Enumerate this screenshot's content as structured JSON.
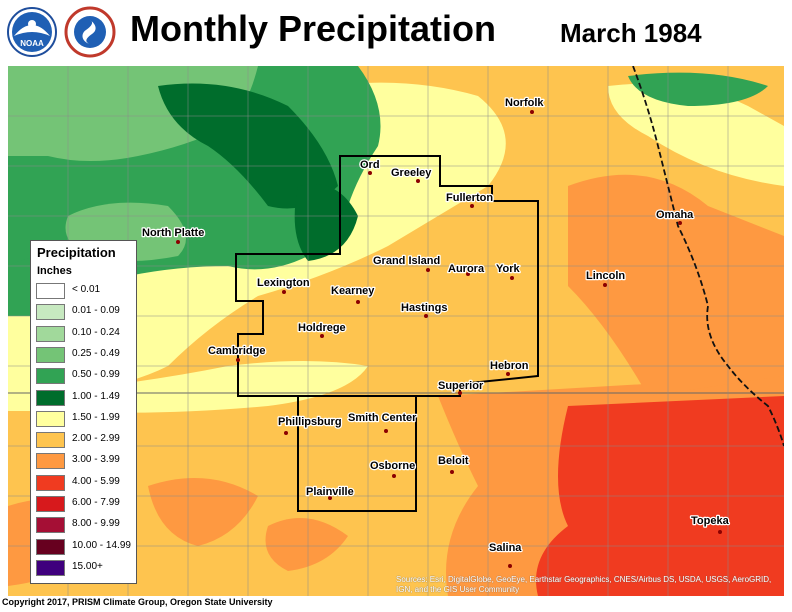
{
  "header": {
    "title": "Monthly Precipitation",
    "subtitle": "March 1984",
    "logos": [
      "noaa-logo",
      "nws-logo"
    ]
  },
  "legend": {
    "title": "Precipitation",
    "units": "Inches",
    "items": [
      {
        "label": "< 0.01",
        "color": "#ffffff"
      },
      {
        "label": "0.01 - 0.09",
        "color": "#c7e9c0"
      },
      {
        "label": "0.10 - 0.24",
        "color": "#a1d99b"
      },
      {
        "label": "0.25 - 0.49",
        "color": "#74c476"
      },
      {
        "label": "0.50 - 0.99",
        "color": "#31a354"
      },
      {
        "label": "1.00 - 1.49",
        "color": "#006d2c"
      },
      {
        "label": "1.50 - 1.99",
        "color": "#ffff9e"
      },
      {
        "label": "2.00 - 2.99",
        "color": "#fec44f"
      },
      {
        "label": "3.00 - 3.99",
        "color": "#fe9941"
      },
      {
        "label": "4.00 - 5.99",
        "color": "#f03b20"
      },
      {
        "label": "6.00 - 7.99",
        "color": "#d7191c"
      },
      {
        "label": "8.00 - 9.99",
        "color": "#a50f35"
      },
      {
        "label": "10.00 - 14.99",
        "color": "#67001f"
      },
      {
        "label": "15.00+",
        "color": "#3f007d"
      }
    ]
  },
  "cities": [
    {
      "name": "Norfolk"
    },
    {
      "name": "Ord"
    },
    {
      "name": "Greeley"
    },
    {
      "name": "Fullerton"
    },
    {
      "name": "Omaha"
    },
    {
      "name": "North Platte"
    },
    {
      "name": "Grand Island"
    },
    {
      "name": "Aurora"
    },
    {
      "name": "York"
    },
    {
      "name": "Lincoln"
    },
    {
      "name": "Lexington"
    },
    {
      "name": "Kearney"
    },
    {
      "name": "Hastings"
    },
    {
      "name": "Holdrege"
    },
    {
      "name": "Cambridge"
    },
    {
      "name": "Hebron"
    },
    {
      "name": "Superior"
    },
    {
      "name": "Phillipsburg"
    },
    {
      "name": "Smith Center"
    },
    {
      "name": "Beloit"
    },
    {
      "name": "Osborne"
    },
    {
      "name": "Plainville"
    },
    {
      "name": "Topeka"
    },
    {
      "name": "Salina"
    }
  ],
  "footer": {
    "copyright": "Copyright 2017, PRISM Climate Group, Oregon State University",
    "source": "Sources: Esri, DigitalGlobe, GeoEye, Earthstar Geographics, CNES/Airbus DS, USDA, USGS, AeroGRID, IGN, and the GIS User Community"
  }
}
